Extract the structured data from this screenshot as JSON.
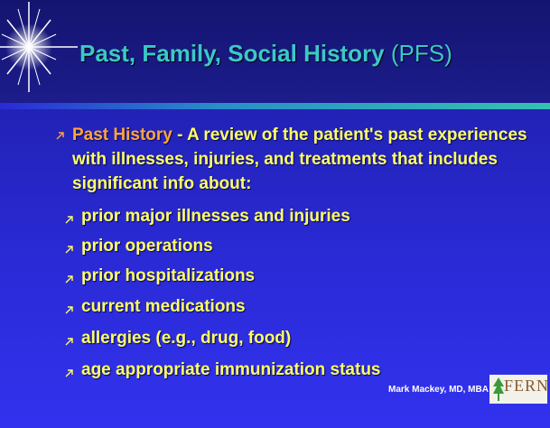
{
  "title": {
    "main": "Past, Family, Social History",
    "suffix": "(PFS)"
  },
  "bullet": {
    "label": "Past History",
    "text": " - A review of the patient's past experiences with illnesses, injuries, and treatments that includes significant info about:"
  },
  "sub_bullets": [
    "prior major illnesses and injuries",
    "prior operations",
    "prior hospitalizations",
    "current medications",
    "allergies (e.g., drug, food)",
    "age appropriate immunization status"
  ],
  "footer": {
    "author": "Mark Mackey, MD, MBA",
    "logo": "FERNE"
  }
}
